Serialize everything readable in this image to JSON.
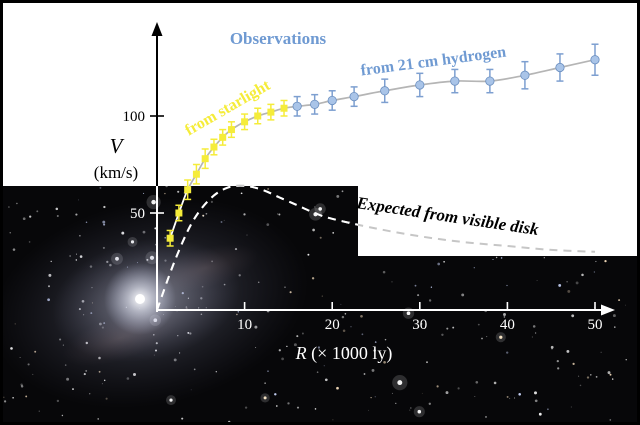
{
  "figure": {
    "labels": {
      "observations": "Observations",
      "starlight": "from starlight",
      "hydrogen": "from 21 cm hydrogen",
      "expected": "Expected from visible disk",
      "y_var": "V",
      "y_unit": "(km/s)",
      "x_var": "R ",
      "x_unit": "(× 1000 ly)"
    },
    "colors": {
      "title_blue": "#6f9ad2",
      "point_blue": "#a9c4e8",
      "bar_blue": "#7d9fd0",
      "starlight_yellow": "#f5ec3a",
      "expected_dash": "#ffffff",
      "background": "#ffffff",
      "photo_black": "#070709"
    }
  },
  "chart_data": {
    "type": "line",
    "title": "Observations",
    "xlabel": "R (× 1000 ly)",
    "ylabel": "V (km/s)",
    "xlim": [
      0,
      52
    ],
    "ylim": [
      0,
      150
    ],
    "x_ticks": [
      10,
      20,
      30,
      40,
      50
    ],
    "y_ticks": [
      50,
      100
    ],
    "grid": false,
    "series": [
      {
        "name": "from starlight",
        "marker": "square",
        "color": "#f5ec3a",
        "bar_color": "#f5ec3a",
        "points": [
          [
            1.5,
            37,
            4
          ],
          [
            2.5,
            50,
            4
          ],
          [
            3.5,
            62,
            5
          ],
          [
            4.5,
            70,
            5
          ],
          [
            5.5,
            78,
            5
          ],
          [
            6.5,
            84,
            4
          ],
          [
            7.5,
            89,
            4
          ],
          [
            8.5,
            93,
            4
          ],
          [
            10,
            97,
            4
          ],
          [
            11.5,
            100,
            4
          ],
          [
            13,
            102,
            4
          ],
          [
            14.5,
            104,
            4
          ]
        ]
      },
      {
        "name": "from 21 cm hydrogen",
        "marker": "circle",
        "color": "#a9c4e8",
        "bar_color": "#7d9fd0",
        "points": [
          [
            16,
            105,
            5
          ],
          [
            18,
            106,
            5
          ],
          [
            20,
            108,
            5
          ],
          [
            22.5,
            110,
            5
          ],
          [
            26,
            113,
            6
          ],
          [
            30,
            116,
            6
          ],
          [
            34,
            118,
            6
          ],
          [
            38,
            118,
            6
          ],
          [
            42,
            121,
            7
          ],
          [
            46,
            125,
            7
          ],
          [
            50,
            129,
            8
          ]
        ]
      }
    ],
    "expected": {
      "label": "Expected from visible disk",
      "points": [
        [
          0,
          0
        ],
        [
          2,
          25
        ],
        [
          4,
          45
        ],
        [
          6,
          57
        ],
        [
          8,
          63
        ],
        [
          10,
          64
        ],
        [
          12,
          62
        ],
        [
          14,
          58
        ],
        [
          16,
          54
        ],
        [
          18,
          50
        ],
        [
          20,
          47
        ],
        [
          25,
          42
        ],
        [
          30,
          38
        ],
        [
          35,
          35
        ],
        [
          40,
          33
        ],
        [
          45,
          31
        ],
        [
          50,
          30
        ]
      ]
    }
  }
}
